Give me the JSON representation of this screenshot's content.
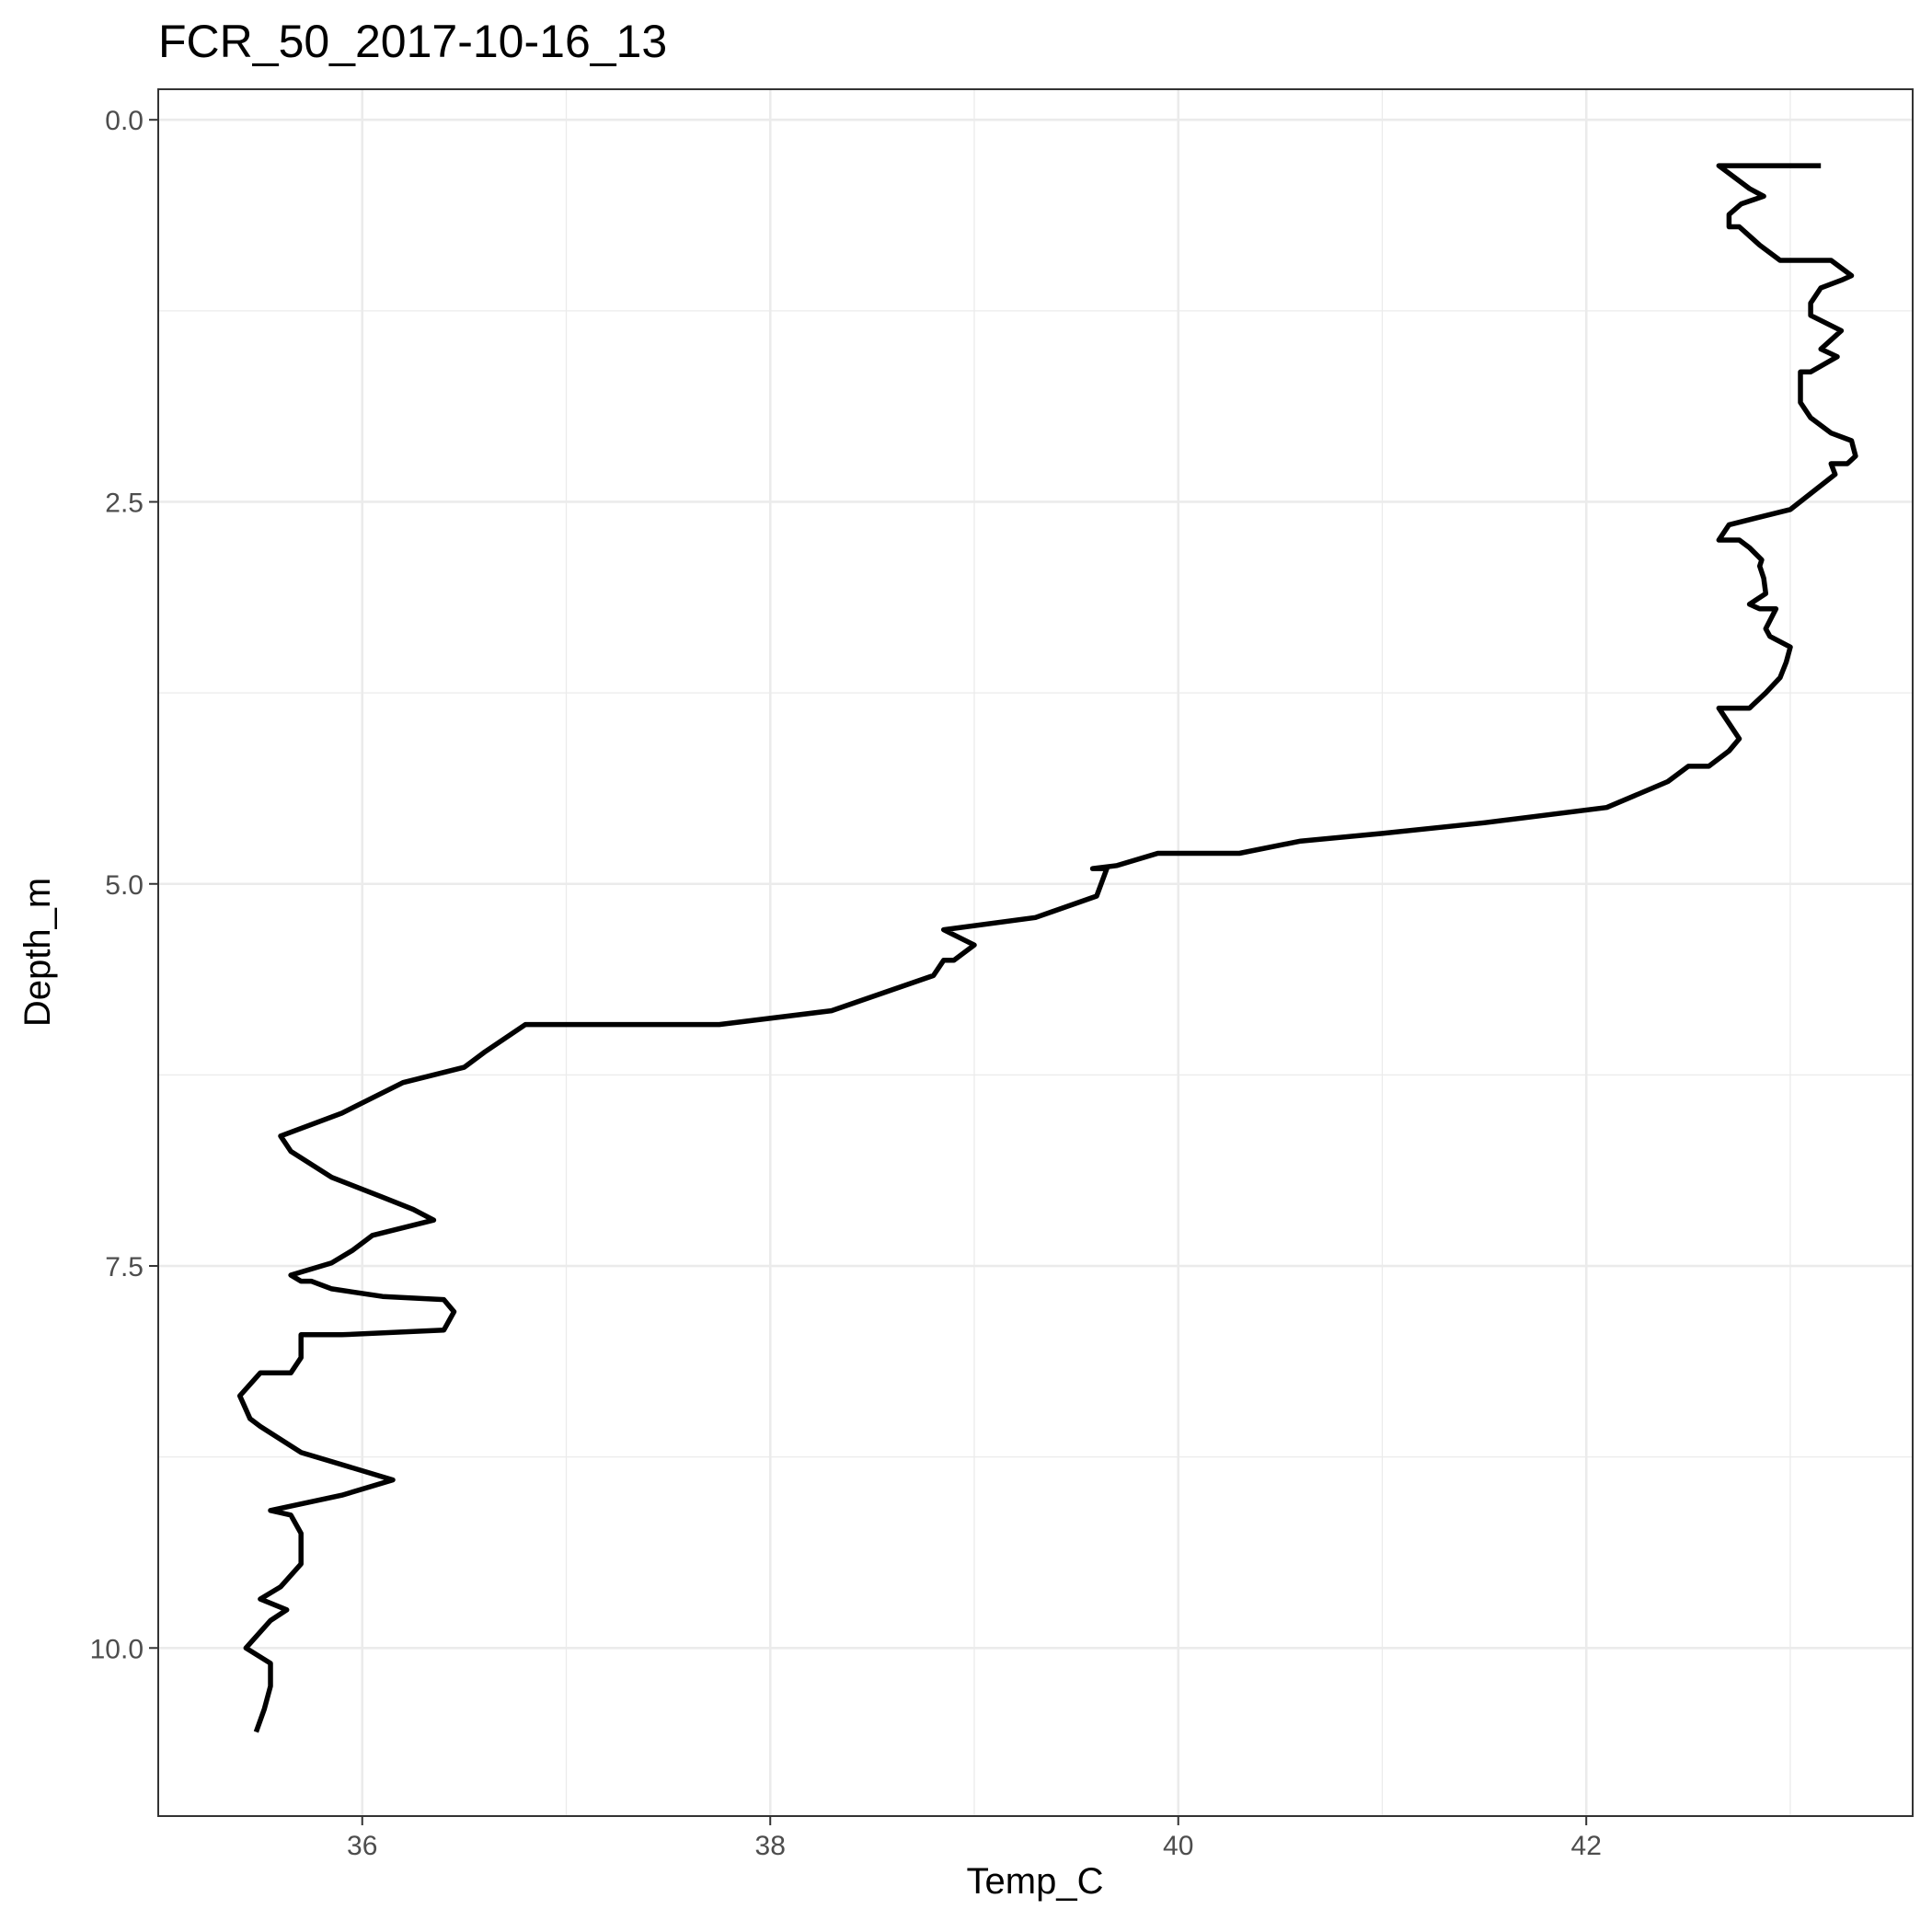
{
  "chart_data": {
    "type": "line",
    "title": "FCR_50_2017-10-16_13",
    "xlabel": "Temp_C",
    "ylabel": "Depth_m",
    "xlim": [
      35.0,
      43.6
    ],
    "ylim": [
      11.1,
      -0.2
    ],
    "y_reversed": true,
    "x_ticks": [
      36,
      38,
      40,
      42
    ],
    "x_tick_labels": [
      "36",
      "38",
      "40",
      "42"
    ],
    "y_ticks": [
      0.0,
      2.5,
      5.0,
      7.5,
      10.0
    ],
    "y_tick_labels": [
      "0.0",
      "2.5",
      "5.0",
      "7.5",
      "10.0"
    ],
    "grid": true,
    "series": [
      {
        "color": "#000000",
        "x": [
          43.15,
          42.65,
          42.8,
          42.87,
          42.76,
          42.7,
          42.7,
          42.75,
          42.85,
          42.95,
          43.2,
          43.3,
          43.25,
          43.15,
          43.1,
          43.1,
          43.25,
          43.15,
          43.23,
          43.1,
          43.05,
          43.05,
          43.1,
          43.2,
          43.3,
          43.32,
          43.28,
          43.2,
          43.22,
          43.0,
          42.7,
          42.65,
          42.75,
          42.8,
          42.86,
          42.85,
          42.87,
          42.88,
          42.8,
          42.85,
          42.93,
          42.88,
          42.9,
          43.0,
          42.98,
          42.95,
          42.88,
          42.8,
          42.65,
          42.7,
          42.75,
          42.7,
          42.6,
          42.5,
          42.4,
          42.1,
          41.5,
          41.0,
          40.6,
          40.3,
          39.9,
          39.7,
          39.58,
          39.65,
          39.6,
          39.3,
          38.85,
          39.0,
          38.9,
          38.85,
          38.8,
          38.3,
          37.75,
          36.8,
          36.6,
          36.5,
          36.2,
          35.9,
          35.6,
          35.65,
          35.85,
          36.1,
          36.25,
          36.35,
          36.05,
          35.95,
          35.85,
          35.65,
          35.7,
          35.75,
          35.85,
          36.1,
          36.4,
          36.45,
          36.4,
          35.9,
          35.7,
          35.7,
          35.65,
          35.5,
          35.4,
          35.45,
          35.5,
          35.7,
          35.9,
          36.15,
          35.9,
          35.55,
          35.65,
          35.7,
          35.7,
          35.6,
          35.5,
          35.63,
          35.55,
          35.43,
          35.55,
          35.55,
          35.52,
          35.48
        ],
        "y": [
          0.3,
          0.3,
          0.45,
          0.5,
          0.55,
          0.62,
          0.7,
          0.7,
          0.82,
          0.92,
          0.92,
          1.02,
          1.05,
          1.1,
          1.2,
          1.28,
          1.38,
          1.5,
          1.55,
          1.65,
          1.65,
          1.85,
          1.95,
          2.05,
          2.1,
          2.2,
          2.25,
          2.25,
          2.32,
          2.55,
          2.65,
          2.75,
          2.75,
          2.8,
          2.88,
          2.92,
          3.0,
          3.1,
          3.17,
          3.2,
          3.2,
          3.33,
          3.38,
          3.45,
          3.55,
          3.65,
          3.75,
          3.85,
          3.85,
          3.95,
          4.05,
          4.13,
          4.23,
          4.23,
          4.33,
          4.5,
          4.6,
          4.67,
          4.72,
          4.8,
          4.8,
          4.88,
          4.9,
          4.9,
          5.08,
          5.22,
          5.3,
          5.4,
          5.5,
          5.5,
          5.6,
          5.83,
          5.92,
          5.92,
          6.1,
          6.2,
          6.3,
          6.5,
          6.65,
          6.75,
          6.92,
          7.05,
          7.13,
          7.2,
          7.3,
          7.4,
          7.48,
          7.56,
          7.6,
          7.6,
          7.65,
          7.7,
          7.72,
          7.8,
          7.92,
          7.95,
          7.95,
          8.1,
          8.2,
          8.2,
          8.35,
          8.5,
          8.55,
          8.72,
          8.8,
          8.9,
          9.0,
          9.1,
          9.13,
          9.25,
          9.45,
          9.6,
          9.68,
          9.75,
          9.82,
          10.0,
          10.1,
          10.25,
          10.4,
          10.55
        ]
      }
    ]
  }
}
